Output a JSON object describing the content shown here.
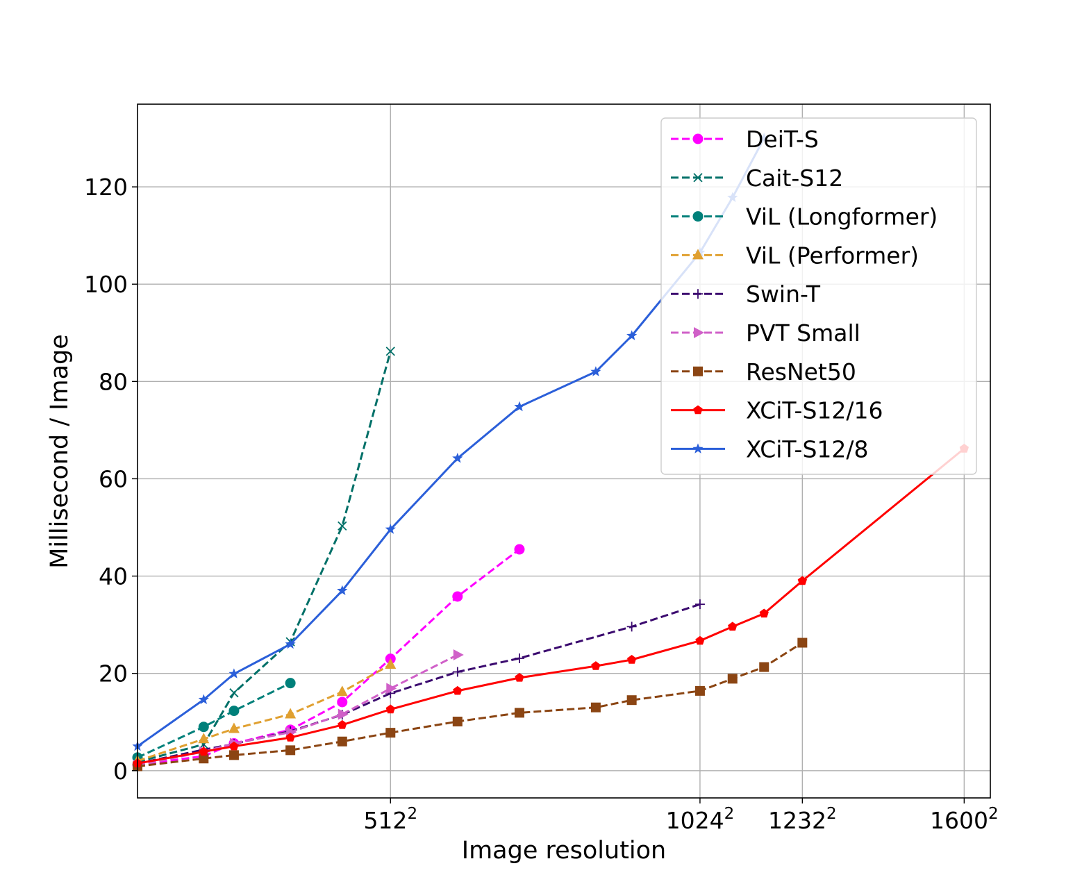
{
  "chart_data": {
    "type": "line",
    "xlabel": "Image resolution",
    "ylabel": "Millisecond / Image",
    "x_scale": "square-root (ticks show side length squared)",
    "xlim_side": [
      224,
      1664
    ],
    "ylim": [
      -5.6,
      137
    ],
    "grid": true,
    "legend_position": "top-right",
    "x_ticks": [
      {
        "base": "512",
        "exp": "2",
        "side": 512
      },
      {
        "base": "1024",
        "exp": "2",
        "side": 1024
      },
      {
        "base": "1232",
        "exp": "2",
        "side": 1232
      },
      {
        "base": "1600",
        "exp": "2",
        "side": 1600
      }
    ],
    "y_ticks": [
      0,
      20,
      40,
      60,
      80,
      100,
      120
    ],
    "series": [
      {
        "name": "DeiT-S",
        "color": "#ff00ff",
        "dash": true,
        "marker": "circle",
        "x": [
          224,
          288,
          320,
          384,
          448,
          512,
          608,
          704
        ],
        "y": [
          1.2,
          3.0,
          5.6,
          8.4,
          14.1,
          23.0,
          35.8,
          45.5
        ]
      },
      {
        "name": "Cait-S12",
        "color": "#007068",
        "dash": true,
        "marker": "x",
        "x": [
          224,
          288,
          320,
          384,
          448,
          512
        ],
        "y": [
          1.8,
          5.4,
          16.0,
          26.5,
          50.3,
          86.2
        ]
      },
      {
        "name": "ViL (Longformer)",
        "color": "#00807a",
        "dash": true,
        "marker": "circle",
        "x": [
          224,
          288,
          320,
          384
        ],
        "y": [
          2.7,
          9.0,
          12.3,
          18.0
        ]
      },
      {
        "name": "ViL (Performer)",
        "color": "#e0a030",
        "dash": true,
        "marker": "triangle-up",
        "x": [
          224,
          288,
          320,
          384,
          448,
          512
        ],
        "y": [
          2.0,
          6.5,
          8.6,
          11.6,
          16.2,
          21.8
        ]
      },
      {
        "name": "Swin-T",
        "color": "#3b0a6f",
        "dash": true,
        "marker": "plus",
        "x": [
          224,
          288,
          320,
          384,
          448,
          512,
          608,
          704,
          896,
          1024
        ],
        "y": [
          1.5,
          4.3,
          5.5,
          8.1,
          11.5,
          15.9,
          20.3,
          23.1,
          29.6,
          34.2
        ]
      },
      {
        "name": "PVT Small",
        "color": "#d060c8",
        "dash": true,
        "marker": "triangle-right",
        "x": [
          224,
          288,
          320,
          384,
          448,
          512,
          608
        ],
        "y": [
          1.1,
          3.9,
          5.6,
          7.9,
          11.6,
          16.9,
          23.8
        ]
      },
      {
        "name": "ResNet50",
        "color": "#8b4513",
        "dash": true,
        "marker": "square",
        "x": [
          224,
          288,
          320,
          384,
          448,
          512,
          608,
          704,
          832,
          896,
          1024,
          1088,
          1152,
          1232
        ],
        "y": [
          0.9,
          2.5,
          3.2,
          4.2,
          6.0,
          7.8,
          10.1,
          11.9,
          13.0,
          14.5,
          16.4,
          18.9,
          21.3,
          26.3
        ]
      },
      {
        "name": "XCiT-S12/16",
        "color": "#ff0000",
        "dash": false,
        "marker": "pentagon",
        "x": [
          224,
          288,
          320,
          384,
          448,
          512,
          608,
          704,
          832,
          896,
          1024,
          1088,
          1152,
          1232,
          1600
        ],
        "y": [
          1.5,
          3.9,
          5.0,
          6.8,
          9.4,
          12.6,
          16.4,
          19.1,
          21.5,
          22.8,
          26.7,
          29.6,
          32.3,
          39.0,
          66.2
        ]
      },
      {
        "name": "XCiT-S12/8",
        "color": "#2b5fd9",
        "dash": false,
        "marker": "star",
        "x": [
          224,
          288,
          320,
          384,
          448,
          512,
          608,
          704,
          832,
          896,
          1024,
          1088,
          1152
        ],
        "y": [
          5.0,
          14.6,
          19.9,
          26.0,
          37.0,
          49.6,
          64.2,
          74.8,
          82.0,
          89.4,
          106.5,
          117.8,
          130.0
        ]
      }
    ]
  }
}
